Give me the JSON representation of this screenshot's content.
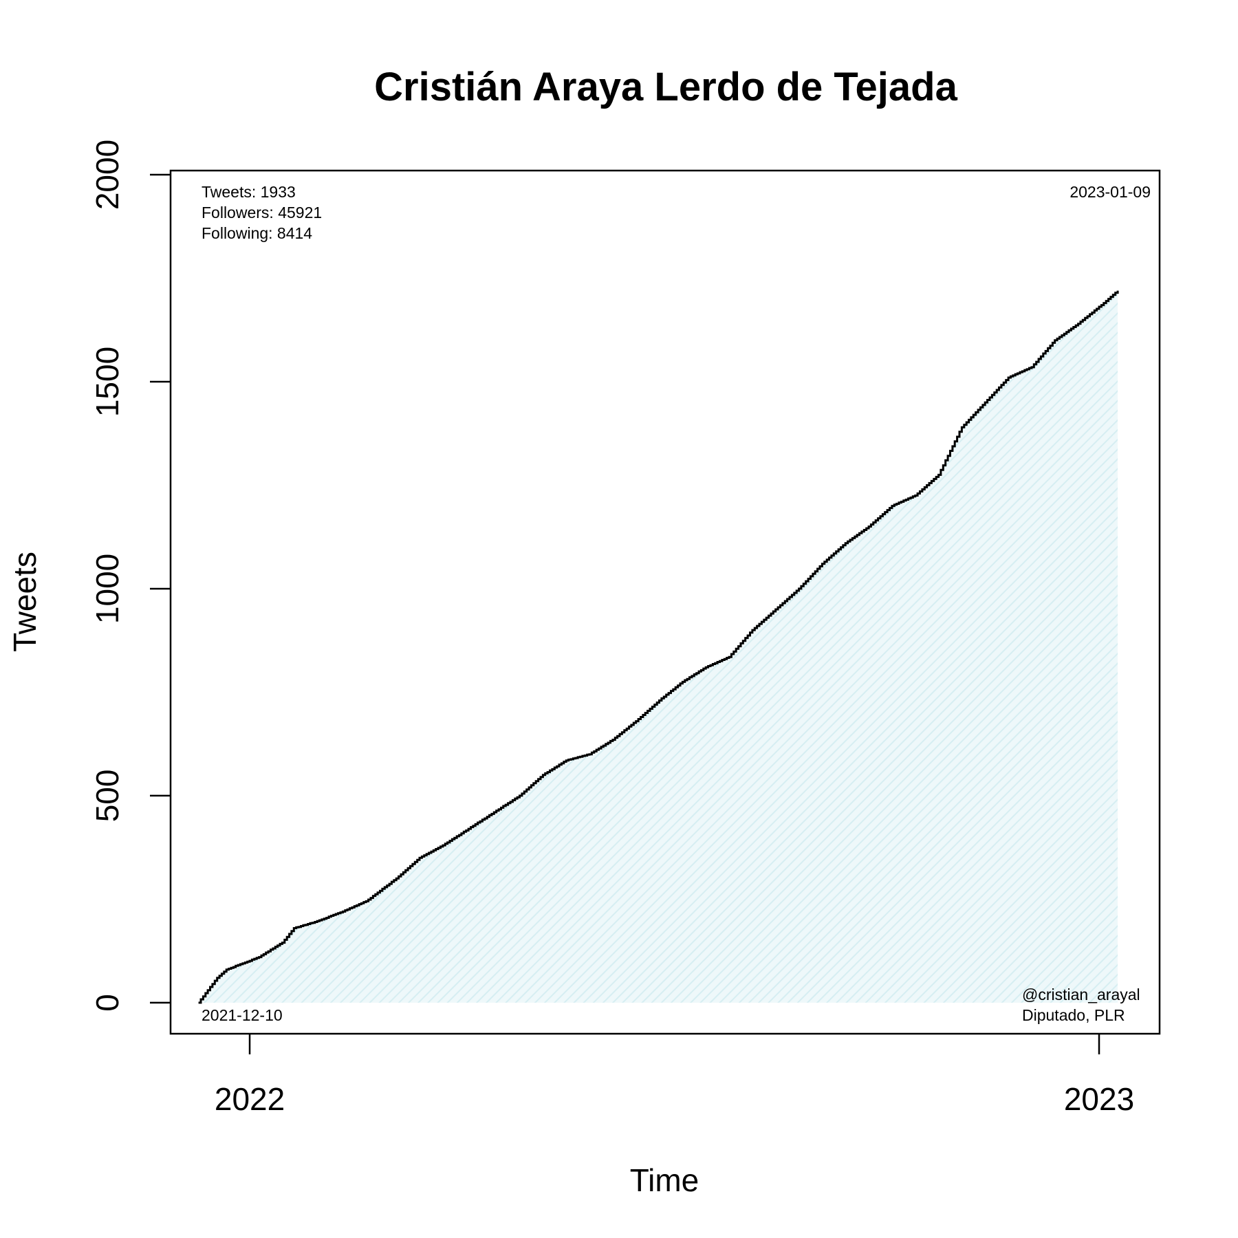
{
  "chart_data": {
    "type": "line",
    "title": "Cristián Araya Lerdo de Tejada",
    "xlabel": "Time",
    "ylabel": "Tweets",
    "x_ticks": [
      {
        "date": "2022-01-01",
        "label": "2022"
      },
      {
        "date": "2023-01-01",
        "label": "2023"
      }
    ],
    "y_ticks": [
      {
        "value": 0,
        "label": "0"
      },
      {
        "value": 500,
        "label": "500"
      },
      {
        "value": 1000,
        "label": "1000"
      },
      {
        "value": 1500,
        "label": "1500"
      },
      {
        "value": 2000,
        "label": "2000"
      }
    ],
    "ylim": [
      -75,
      2010
    ],
    "xlim": [
      "2021-11-28",
      "2023-01-27"
    ],
    "grid": false,
    "fill_under_line": true,
    "line_color": "#000000",
    "fill_color": "#e3f3f7",
    "annotations": {
      "tweets": "Tweets: 1933",
      "followers": "Followers: 45921",
      "following": "Following: 8414",
      "start_date": "2021-12-10",
      "end_date": "2023-01-09",
      "handle": "@cristian_arayal",
      "affiliation": "Diputado, PLR"
    },
    "series": [
      {
        "x": [
          "2021-12-10",
          "2021-12-14",
          "2021-12-18",
          "2021-12-22",
          "2022-01-05",
          "2022-01-15",
          "2022-01-20",
          "2022-01-29",
          "2022-02-10",
          "2022-02-20",
          "2022-03-05",
          "2022-03-15",
          "2022-03-25",
          "2022-04-05",
          "2022-04-16",
          "2022-04-27",
          "2022-05-07",
          "2022-05-17",
          "2022-05-27",
          "2022-06-06",
          "2022-06-16",
          "2022-06-26",
          "2022-07-06",
          "2022-07-16",
          "2022-07-26",
          "2022-08-05",
          "2022-08-15",
          "2022-08-25",
          "2022-09-04",
          "2022-09-14",
          "2022-09-24",
          "2022-10-04",
          "2022-10-14",
          "2022-10-24",
          "2022-11-03",
          "2022-11-13",
          "2022-11-23",
          "2022-12-03",
          "2022-12-13",
          "2022-12-23",
          "2023-01-03",
          "2023-01-09"
        ],
        "y": [
          0,
          30,
          60,
          80,
          110,
          145,
          180,
          195,
          220,
          245,
          300,
          350,
          380,
          420,
          460,
          500,
          550,
          585,
          600,
          635,
          680,
          730,
          775,
          810,
          835,
          900,
          950,
          1000,
          1060,
          1110,
          1150,
          1200,
          1225,
          1275,
          1390,
          1450,
          1510,
          1535,
          1600,
          1640,
          1690,
          1720
        ]
      }
    ]
  }
}
